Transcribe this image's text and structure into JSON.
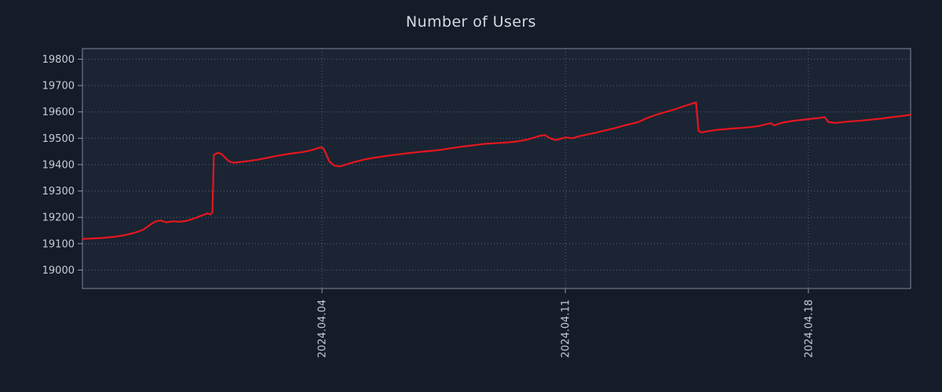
{
  "colors": {
    "background": "#151b28",
    "plot_background": "#1b2433",
    "grid": "#c2cad8",
    "axis": "#8e99ab",
    "text": "#c6cdd8",
    "line": "#e5161e"
  },
  "chart_data": {
    "type": "line",
    "title": "Number of Users",
    "xlabel": "",
    "ylabel": "",
    "x_unit": "days",
    "grid": true,
    "legend": "none",
    "xlim": [
      0,
      23.82
    ],
    "ylim": [
      18930,
      19840
    ],
    "x_ticks": [
      {
        "pos": 6.89,
        "label": "2024.04.04"
      },
      {
        "pos": 13.89,
        "label": "2024.04.11"
      },
      {
        "pos": 20.88,
        "label": "2024.04.18"
      }
    ],
    "y_ticks": [
      19000,
      19100,
      19200,
      19300,
      19400,
      19500,
      19600,
      19700,
      19800
    ],
    "series": [
      {
        "name": "Number of Users",
        "color": "#e5161e",
        "points": [
          [
            0,
            19118
          ],
          [
            0.3,
            19120
          ],
          [
            0.6,
            19122
          ],
          [
            0.9,
            19126
          ],
          [
            1.2,
            19132
          ],
          [
            1.5,
            19141
          ],
          [
            1.75,
            19153
          ],
          [
            1.95,
            19172
          ],
          [
            2.1,
            19184
          ],
          [
            2.25,
            19188
          ],
          [
            2.4,
            19181
          ],
          [
            2.6,
            19185
          ],
          [
            2.8,
            19183
          ],
          [
            3.0,
            19187
          ],
          [
            3.15,
            19193
          ],
          [
            3.3,
            19200
          ],
          [
            3.45,
            19208
          ],
          [
            3.6,
            19215
          ],
          [
            3.68,
            19211
          ],
          [
            3.74,
            19219
          ],
          [
            3.78,
            19437
          ],
          [
            3.9,
            19445
          ],
          [
            4.0,
            19440
          ],
          [
            4.1,
            19427
          ],
          [
            4.22,
            19412
          ],
          [
            4.35,
            19407
          ],
          [
            4.55,
            19410
          ],
          [
            4.8,
            19414
          ],
          [
            5.05,
            19419
          ],
          [
            5.3,
            19425
          ],
          [
            5.55,
            19432
          ],
          [
            5.8,
            19438
          ],
          [
            6.05,
            19443
          ],
          [
            6.3,
            19447
          ],
          [
            6.5,
            19452
          ],
          [
            6.7,
            19459
          ],
          [
            6.85,
            19466
          ],
          [
            6.93,
            19462
          ],
          [
            7.0,
            19443
          ],
          [
            7.1,
            19412
          ],
          [
            7.25,
            19396
          ],
          [
            7.4,
            19393
          ],
          [
            7.6,
            19401
          ],
          [
            7.85,
            19411
          ],
          [
            8.1,
            19419
          ],
          [
            8.35,
            19425
          ],
          [
            8.6,
            19430
          ],
          [
            8.85,
            19435
          ],
          [
            9.1,
            19439
          ],
          [
            9.35,
            19443
          ],
          [
            9.6,
            19447
          ],
          [
            9.85,
            19450
          ],
          [
            10.1,
            19453
          ],
          [
            10.35,
            19457
          ],
          [
            10.6,
            19462
          ],
          [
            10.85,
            19467
          ],
          [
            11.1,
            19471
          ],
          [
            11.35,
            19475
          ],
          [
            11.6,
            19479
          ],
          [
            11.85,
            19481
          ],
          [
            12.1,
            19483
          ],
          [
            12.3,
            19485
          ],
          [
            12.5,
            19488
          ],
          [
            12.8,
            19495
          ],
          [
            13.0,
            19503
          ],
          [
            13.15,
            19509
          ],
          [
            13.3,
            19512
          ],
          [
            13.45,
            19500
          ],
          [
            13.6,
            19493
          ],
          [
            13.75,
            19498
          ],
          [
            13.9,
            19503
          ],
          [
            14.1,
            19500
          ],
          [
            14.3,
            19508
          ],
          [
            14.55,
            19515
          ],
          [
            14.8,
            19522
          ],
          [
            15.05,
            19530
          ],
          [
            15.3,
            19538
          ],
          [
            15.55,
            19547
          ],
          [
            15.8,
            19555
          ],
          [
            16.0,
            19562
          ],
          [
            16.2,
            19574
          ],
          [
            16.35,
            19582
          ],
          [
            16.5,
            19589
          ],
          [
            16.65,
            19595
          ],
          [
            16.8,
            19601
          ],
          [
            17.0,
            19608
          ],
          [
            17.2,
            19617
          ],
          [
            17.4,
            19626
          ],
          [
            17.55,
            19632
          ],
          [
            17.65,
            19636
          ],
          [
            17.72,
            19528
          ],
          [
            17.8,
            19522
          ],
          [
            18.0,
            19527
          ],
          [
            18.2,
            19531
          ],
          [
            18.45,
            19534
          ],
          [
            18.7,
            19537
          ],
          [
            18.95,
            19539
          ],
          [
            19.2,
            19542
          ],
          [
            19.45,
            19546
          ],
          [
            19.65,
            19553
          ],
          [
            19.8,
            19557
          ],
          [
            19.9,
            19549
          ],
          [
            20.05,
            19556
          ],
          [
            20.25,
            19562
          ],
          [
            20.45,
            19566
          ],
          [
            20.65,
            19569
          ],
          [
            20.85,
            19572
          ],
          [
            21.05,
            19575
          ],
          [
            21.25,
            19578
          ],
          [
            21.35,
            19580
          ],
          [
            21.45,
            19562
          ],
          [
            21.65,
            19558
          ],
          [
            21.85,
            19561
          ],
          [
            22.1,
            19564
          ],
          [
            22.4,
            19567
          ],
          [
            22.7,
            19571
          ],
          [
            23.0,
            19575
          ],
          [
            23.3,
            19580
          ],
          [
            23.6,
            19585
          ],
          [
            23.82,
            19589
          ]
        ]
      }
    ]
  }
}
